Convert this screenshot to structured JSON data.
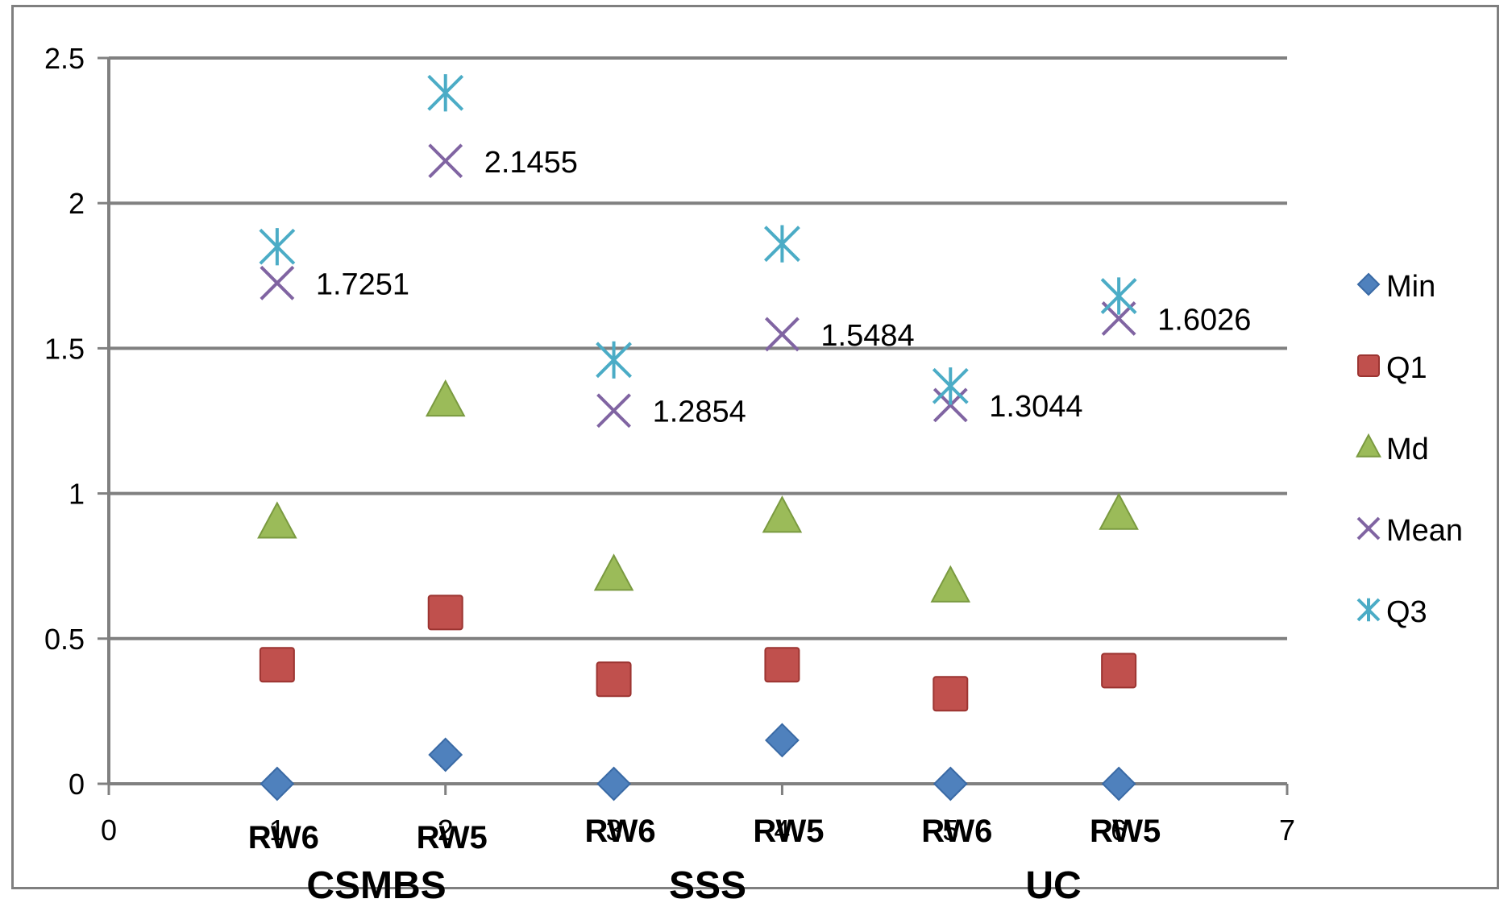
{
  "chart_data": {
    "type": "scatter",
    "xlim": [
      0,
      7
    ],
    "ylim": [
      0,
      2.5
    ],
    "x_ticks": [
      "0",
      "1",
      "2",
      "3",
      "4",
      "5",
      "6",
      "7"
    ],
    "y_ticks": [
      "0",
      "0.5",
      "1",
      "1.5",
      "2",
      "2.5"
    ],
    "grid": "horizontal",
    "legend_position": "right",
    "category_labels": [
      "RW6",
      "RW5",
      "RW6",
      "RW5",
      "RW6",
      "RW5"
    ],
    "group_labels": [
      "CSMBS",
      "SSS",
      "UC"
    ],
    "series": [
      {
        "name": "Min",
        "marker": "diamond",
        "color": "#4f81bd",
        "points": [
          [
            1,
            0.0
          ],
          [
            2,
            0.1
          ],
          [
            3,
            0.0
          ],
          [
            4,
            0.15
          ],
          [
            5,
            0.0
          ],
          [
            6,
            0.0
          ]
        ]
      },
      {
        "name": "Q1",
        "marker": "square",
        "color": "#c0504d",
        "points": [
          [
            1,
            0.41
          ],
          [
            2,
            0.59
          ],
          [
            3,
            0.36
          ],
          [
            4,
            0.41
          ],
          [
            5,
            0.31
          ],
          [
            6,
            0.39
          ]
        ]
      },
      {
        "name": "Md",
        "marker": "triangle",
        "color": "#9bbb59",
        "points": [
          [
            1,
            0.9
          ],
          [
            2,
            1.32
          ],
          [
            3,
            0.72
          ],
          [
            4,
            0.92
          ],
          [
            5,
            0.68
          ],
          [
            6,
            0.93
          ]
        ]
      },
      {
        "name": "Mean",
        "marker": "x",
        "color": "#8064a2",
        "points": [
          [
            1,
            1.7251
          ],
          [
            2,
            2.1455
          ],
          [
            3,
            1.2854
          ],
          [
            4,
            1.5484
          ],
          [
            5,
            1.3044
          ],
          [
            6,
            1.6026
          ]
        ],
        "data_labels": [
          "1.7251",
          "2.1455",
          "1.2854",
          "1.5484",
          "1.3044",
          "1.6026"
        ]
      },
      {
        "name": "Q3",
        "marker": "star",
        "color": "#4bacc6",
        "points": [
          [
            1,
            1.85
          ],
          [
            2,
            2.38
          ],
          [
            3,
            1.46
          ],
          [
            4,
            1.86
          ],
          [
            5,
            1.37
          ],
          [
            6,
            1.68
          ]
        ]
      }
    ]
  }
}
